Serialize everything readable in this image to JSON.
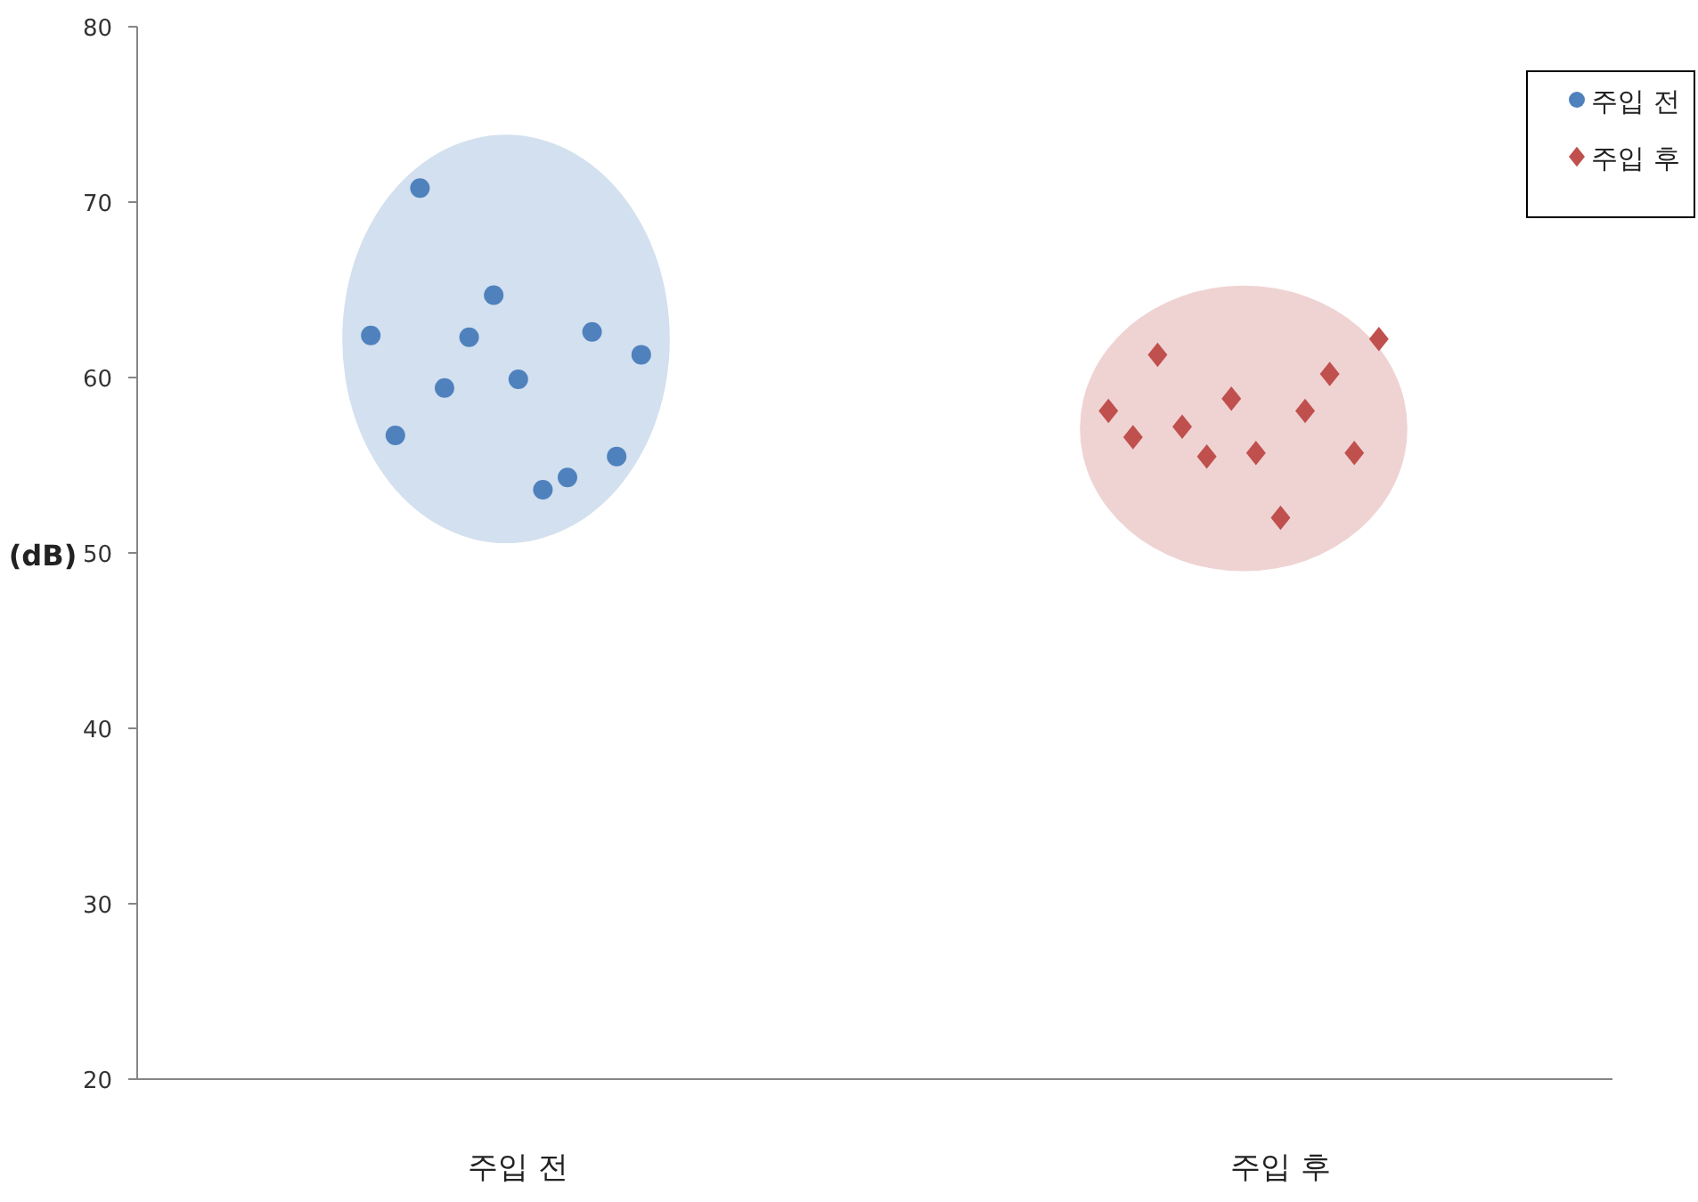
{
  "chart_data": {
    "type": "scatter",
    "ylabel": "(dB)",
    "categories": [
      null,
      null,
      null,
      null,
      null,
      null,
      null,
      null,
      null,
      null,
      null,
      null,
      null,
      null,
      null,
      "주입 전",
      null,
      null,
      null,
      null,
      null,
      null,
      null,
      null,
      null,
      null,
      null,
      null,
      null,
      null,
      null,
      null,
      null,
      null,
      null,
      null,
      null,
      null,
      null,
      null,
      null,
      null,
      null,
      null,
      null,
      null,
      "주입 후",
      null,
      null,
      null,
      null,
      null,
      null,
      null,
      null,
      null,
      null,
      null,
      null,
      null
    ],
    "ylim": [
      20,
      80
    ],
    "yticks": [
      20,
      30,
      40,
      50,
      60,
      70,
      80
    ],
    "legend": "top right",
    "series": [
      {
        "name": "주입 전",
        "color": "#4f81bd",
        "marker": "circle",
        "values": [
          null,
          null,
          null,
          null,
          null,
          null,
          null,
          null,
          null,
          62.4,
          56.7,
          70.8,
          59.4,
          62.3,
          64.7,
          59.9,
          53.6,
          54.3,
          62.6,
          55.5,
          61.3,
          null,
          null,
          null,
          null,
          null,
          null,
          null,
          null,
          null,
          null,
          null,
          null,
          null,
          null,
          null,
          null,
          null,
          null,
          null,
          null,
          null,
          null,
          null,
          null,
          null,
          null,
          null,
          null,
          null,
          null,
          null,
          null,
          null,
          null,
          null,
          null,
          null,
          null,
          null
        ]
      },
      {
        "name": "주입 후",
        "color": "#c0504d",
        "marker": "diamond",
        "values": [
          null,
          null,
          null,
          null,
          null,
          null,
          null,
          null,
          null,
          null,
          null,
          null,
          null,
          null,
          null,
          null,
          null,
          null,
          null,
          null,
          null,
          null,
          null,
          null,
          null,
          null,
          null,
          null,
          null,
          null,
          null,
          null,
          null,
          null,
          null,
          null,
          null,
          null,
          null,
          58.1,
          56.6,
          61.3,
          57.2,
          55.5,
          58.8,
          55.7,
          52.0,
          58.1,
          60.2,
          55.7,
          62.2,
          null,
          null,
          null,
          null,
          null,
          null,
          null,
          null,
          null
        ]
      }
    ]
  }
}
